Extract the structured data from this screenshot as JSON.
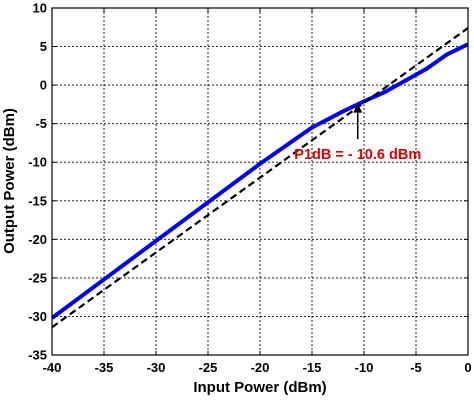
{
  "chart_data": {
    "type": "line",
    "xlabel": "Input Power (dBm)",
    "ylabel": "Output Power (dBm)",
    "xlim": [
      -40,
      0
    ],
    "ylim": [
      -35,
      10
    ],
    "x_ticks": [
      -40,
      -35,
      -30,
      -25,
      -20,
      -15,
      -10,
      -5,
      0
    ],
    "y_ticks": [
      -35,
      -30,
      -25,
      -20,
      -15,
      -10,
      -5,
      0,
      5,
      10
    ],
    "x_tick_labels": [
      "-40",
      "-35",
      "-30",
      "-25",
      "-20",
      "-15",
      "-10",
      "-5",
      "0"
    ],
    "y_tick_labels": [
      "-35",
      "-30",
      "-25",
      "-20",
      "-15",
      "-10",
      "-5",
      "0",
      "5",
      "10"
    ],
    "grid": true,
    "series": [
      {
        "color": "#0000ff",
        "style": "solid",
        "x": [
          -40,
          -35,
          -30,
          -25,
          -20,
          -15,
          -12,
          -10,
          -8,
          -6,
          -4,
          -2,
          0
        ],
        "y": [
          -30.2,
          -25.2,
          -20.2,
          -15.2,
          -10.2,
          -5.5,
          -3.4,
          -2.1,
          -0.9,
          0.6,
          2.1,
          4.0,
          5.3
        ]
      },
      {
        "color": "#000000",
        "style": "dashed",
        "x": [
          -40,
          0
        ],
        "y": [
          -31.4,
          7.4
        ]
      }
    ],
    "annotations": [
      {
        "text": "P1dB = - 10.6 dBm",
        "color": "#e00000",
        "x": -10.6,
        "y": -2.4,
        "arrow_from_y": -7.0
      }
    ]
  }
}
